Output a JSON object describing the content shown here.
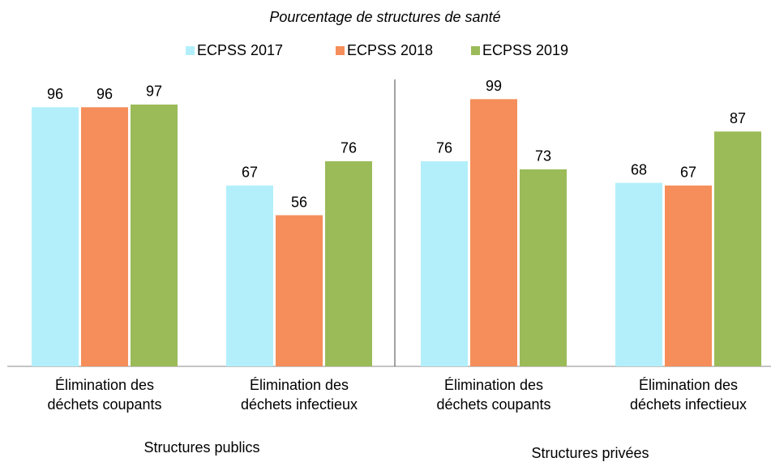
{
  "chart_data": {
    "type": "bar",
    "title": "Pourcentage de structures de santé",
    "categories": [
      "Élimination des déchets coupants",
      "Élimination des déchets infectieux",
      "Élimination des déchets coupants",
      "Élimination des déchets infectieux"
    ],
    "groups": [
      "Structures publics",
      "Structures privées"
    ],
    "series": [
      {
        "name": "ECPSS 2017",
        "color": "#b3effb",
        "values": [
          96,
          67,
          76,
          68
        ]
      },
      {
        "name": "ECPSS 2018",
        "color": "#f58e5a",
        "values": [
          96,
          56,
          99,
          67
        ]
      },
      {
        "name": "ECPSS 2019",
        "color": "#9bbb59",
        "values": [
          97,
          76,
          73,
          87
        ]
      }
    ],
    "ylim": [
      0,
      100
    ]
  }
}
